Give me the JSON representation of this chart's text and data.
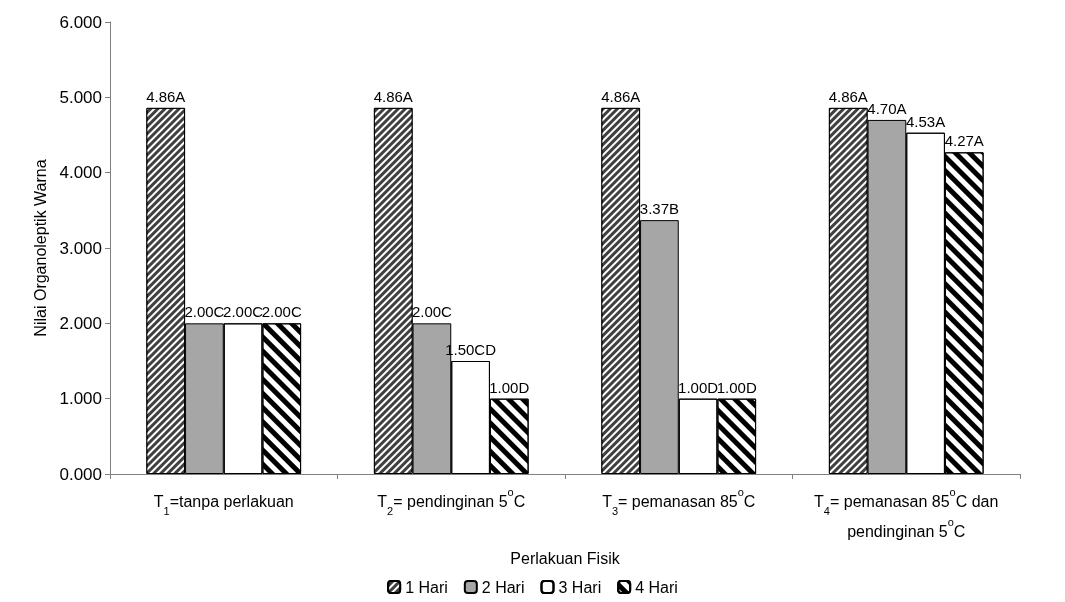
{
  "chart_data": {
    "type": "bar",
    "xlabel": "Perlakuan Fisik",
    "ylabel": "Nilai Organoleptik Warna",
    "categories": [
      "T$_{1}$=tanpa perlakuan",
      "T$_{2}$= pendinginan 5$^{o}$C",
      "T$_{3}$= pemanasan 85$^{o}$C",
      "T$_{4}$= pemanasan 85$^{o}$C dan\npendinginan 5$^{o}$C"
    ],
    "series": [
      {
        "name": "1 Hari",
        "color": "#404040",
        "values": [
          4.86,
          4.86,
          4.86,
          4.86
        ],
        "value_labels": [
          "4.86A",
          "4.86A",
          "4.86A",
          "4.86A"
        ]
      },
      {
        "name": "2 Hari",
        "color": "#a6a6a6",
        "values": [
          2.0,
          2.0,
          3.37,
          4.7
        ],
        "value_labels": [
          "2.00C",
          "2.00C",
          "3.37B",
          "4.70A"
        ]
      },
      {
        "name": "3 Hari",
        "color": "#ffffff",
        "values": [
          2.0,
          1.5,
          1.0,
          4.53
        ],
        "value_labels": [
          "2.00C",
          "1.50CD",
          "1.00D",
          "4.53A"
        ]
      },
      {
        "name": "4 Hari",
        "color": "#ffffff",
        "values": [
          2.0,
          1.0,
          1.0,
          4.27
        ],
        "value_labels": [
          "2.00C",
          "1.00D",
          "1.00D",
          "4.27A"
        ]
      }
    ],
    "ylim": [
      0,
      6
    ],
    "yticks": [
      {
        "value": 0,
        "label": "0.000"
      },
      {
        "value": 1,
        "label": "1.000"
      },
      {
        "value": 2,
        "label": "2.000"
      },
      {
        "value": 3,
        "label": "3.000"
      },
      {
        "value": 4,
        "label": "4.000"
      },
      {
        "value": 5,
        "label": "5.000"
      },
      {
        "value": 6,
        "label": "6.000"
      }
    ],
    "grid": false,
    "legend": "bottom"
  }
}
